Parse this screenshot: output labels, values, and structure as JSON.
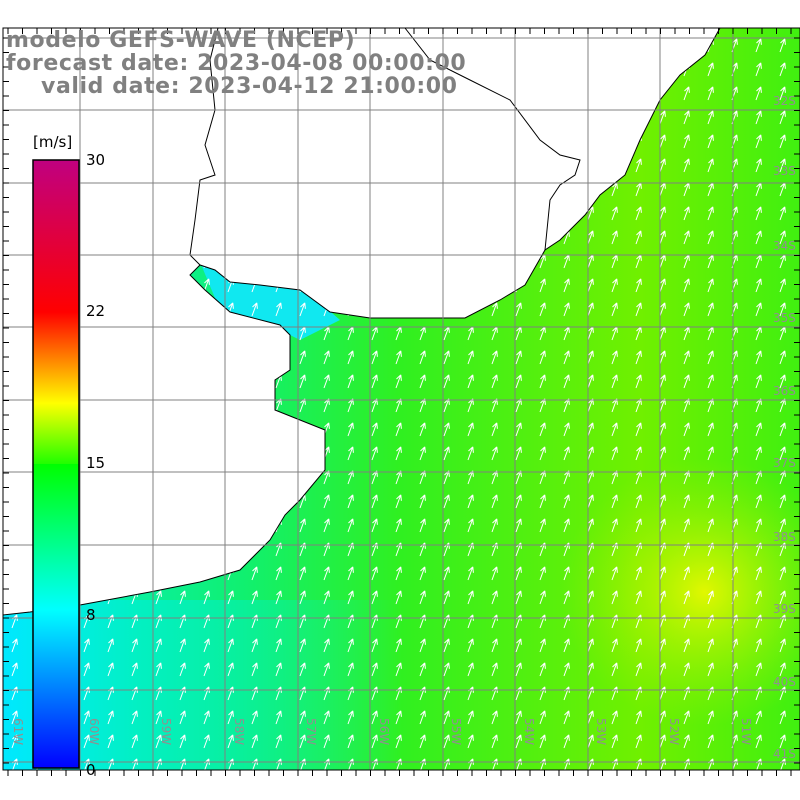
{
  "title": {
    "line1": "modelo GEFS-WAVE (NCEP)",
    "line2": "forecast date: 2023-04-08 00:00:00",
    "line3": "valid date: 2023-04-12 21:00:00"
  },
  "colorbar": {
    "unit": "[m/s]",
    "labels": [
      "30",
      "22",
      "15",
      "8",
      "0"
    ],
    "colors": [
      "#0000ff",
      "#00ffff",
      "#00ff00",
      "#ffff00",
      "#ff0000",
      "#c00080"
    ]
  },
  "axes": {
    "lat_labels": [
      "32S",
      "33S",
      "34S",
      "35S",
      "36S",
      "37S",
      "38S",
      "39S",
      "40S",
      "41S"
    ],
    "lon_labels": [
      "61W",
      "60W",
      "59W",
      "58W",
      "57W",
      "56W",
      "55W",
      "54W",
      "53W",
      "52W",
      "51W"
    ]
  },
  "wind_direction": "toward NNE"
}
